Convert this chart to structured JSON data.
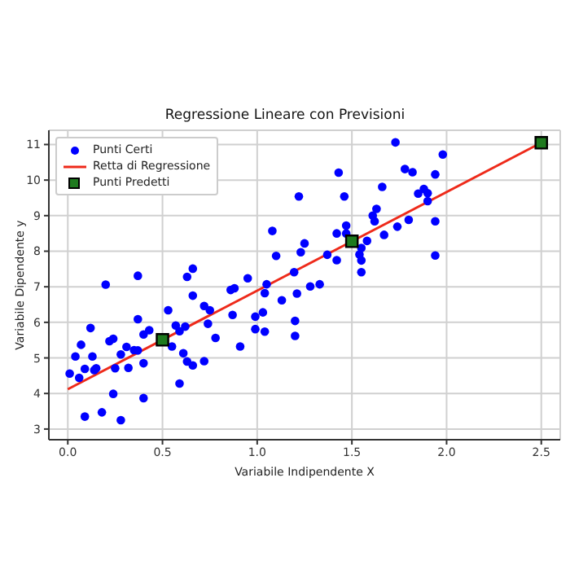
{
  "chart_data": {
    "type": "scatter",
    "title": "Regressione Lineare con Previsioni",
    "xlabel": "Variabile Indipendente X",
    "ylabel": "Variabile Dipendente y",
    "xlim": [
      -0.1,
      2.6
    ],
    "xticks": [
      {
        "value": 0,
        "label": "0.0"
      },
      {
        "value": 0.5,
        "label": "0.5"
      },
      {
        "value": 1,
        "label": "1.0"
      },
      {
        "value": 1.5,
        "label": "1.5"
      },
      {
        "value": 2,
        "label": "2.0"
      },
      {
        "value": 2.5,
        "label": "2.5"
      }
    ],
    "ylim": [
      2.7,
      11.4
    ],
    "yticks": [
      3,
      4,
      5,
      6,
      7,
      8,
      9,
      10,
      11
    ],
    "grid": true,
    "legend": "top left",
    "series": [
      {
        "name": "Punti Certi",
        "marker": "circle",
        "color": "#0000ff",
        "x": [
          0.01,
          0.06,
          0.07,
          0.04,
          0.09,
          0.12,
          0.13,
          0.14,
          0.15,
          0.09,
          0.18,
          0.2,
          0.22,
          0.24,
          0.25,
          0.24,
          0.28,
          0.28,
          0.31,
          0.32,
          0.35,
          0.37,
          0.37,
          0.37,
          0.4,
          0.4,
          0.4,
          0.43,
          0.53,
          0.55,
          0.57,
          0.59,
          0.59,
          0.61,
          0.62,
          0.63,
          0.63,
          0.66,
          0.66,
          0.66,
          0.72,
          0.72,
          0.74,
          0.75,
          0.78,
          0.86,
          0.88,
          0.87,
          0.95,
          0.91,
          0.99,
          0.99,
          1.03,
          1.04,
          1.04,
          1.05,
          1.08,
          1.1,
          1.13,
          1.195,
          1.21,
          1.2,
          1.2,
          1.22,
          1.23,
          1.25,
          1.28,
          1.33,
          1.37,
          1.42,
          1.42,
          1.43,
          1.46,
          1.47,
          1.47,
          1.54,
          1.55,
          1.55,
          1.55,
          1.58,
          1.61,
          1.62,
          1.63,
          1.66,
          1.67,
          1.73,
          1.74,
          1.78,
          1.8,
          1.82,
          1.85,
          1.88,
          1.9,
          1.9,
          1.94,
          1.94,
          1.94,
          1.98
        ],
        "values": [
          4.56,
          4.44,
          5.37,
          5.04,
          4.69,
          5.84,
          5.04,
          4.66,
          4.71,
          3.35,
          3.47,
          7.06,
          5.47,
          5.54,
          4.71,
          3.99,
          5.1,
          3.25,
          5.31,
          4.72,
          5.22,
          5.21,
          7.31,
          6.09,
          5.66,
          4.85,
          3.87,
          5.78,
          6.34,
          5.32,
          5.91,
          5.75,
          4.28,
          5.13,
          5.88,
          4.9,
          7.28,
          6.75,
          7.51,
          4.79,
          4.91,
          6.46,
          5.96,
          6.34,
          5.56,
          6.91,
          6.96,
          6.21,
          7.24,
          5.32,
          6.16,
          5.81,
          6.28,
          5.74,
          6.82,
          7.07,
          8.57,
          7.87,
          6.62,
          7.41,
          6.81,
          6.04,
          5.62,
          9.54,
          7.97,
          8.22,
          7.01,
          7.07,
          7.9,
          8.5,
          7.75,
          10.21,
          9.54,
          8.72,
          8.5,
          7.91,
          7.74,
          7.41,
          8.09,
          8.29,
          9.0,
          8.84,
          9.19,
          9.81,
          8.46,
          11.06,
          8.69,
          10.31,
          8.88,
          10.22,
          9.62,
          9.75,
          9.63,
          9.41,
          10.16,
          8.84,
          7.88,
          10.72
        ]
      },
      {
        "name": "Retta di Regressione",
        "type": "line",
        "marker": "none",
        "line_style": "solid",
        "color": "#ee2a1a",
        "x": [
          0,
          2.5
        ],
        "values": [
          4.12,
          11.05
        ]
      },
      {
        "name": "Punti Predetti",
        "marker": "square",
        "color": "#1e7a1e",
        "x": [
          0.5,
          1.5,
          2.5
        ],
        "values": [
          5.51,
          8.28,
          11.05
        ]
      }
    ]
  }
}
